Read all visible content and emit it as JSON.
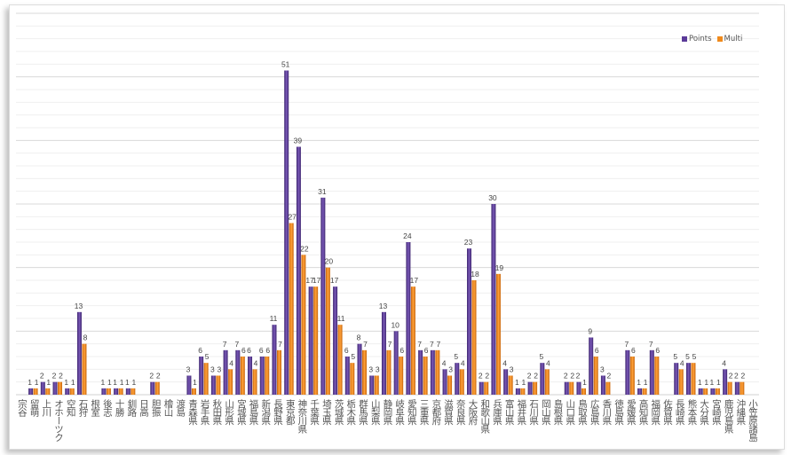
{
  "chart_data": {
    "type": "bar",
    "title": "",
    "xlabel": "",
    "ylabel": "",
    "ylim": [
      0,
      60
    ],
    "grid": true,
    "legend_position": "top-right",
    "categories": [
      "宗谷",
      "留萌",
      "上川",
      "オホーツク",
      "空知",
      "石狩",
      "根室",
      "後志",
      "十勝",
      "釧路",
      "日高",
      "胆振",
      "檜山",
      "渡島",
      "青森県",
      "岩手県",
      "秋田県",
      "山形県",
      "宮城県",
      "福島県",
      "新潟県",
      "長野県",
      "東京都",
      "神奈川県",
      "千葉県",
      "埼玉県",
      "茨城県",
      "栃木県",
      "群馬県",
      "山梨県",
      "静岡県",
      "岐阜県",
      "愛知県",
      "三重県",
      "京都府",
      "滋賀県",
      "奈良県",
      "大阪府",
      "和歌山県",
      "兵庫県",
      "富山県",
      "福井県",
      "石川県",
      "岡山県",
      "島根県",
      "山口県",
      "鳥取県",
      "広島県",
      "香川県",
      "徳島県",
      "愛媛県",
      "高知県",
      "福岡県",
      "佐賀県",
      "長崎県",
      "熊本県",
      "大分県",
      "宮崎県",
      "鹿児島県",
      "沖縄県",
      "小笠原諸島"
    ],
    "series": [
      {
        "name": "Points",
        "color": "#5b3b99",
        "values": [
          0,
          1,
          2,
          2,
          1,
          13,
          0,
          1,
          1,
          1,
          0,
          2,
          0,
          0,
          3,
          6,
          3,
          7,
          7,
          6,
          6,
          11,
          51,
          39,
          17,
          31,
          17,
          6,
          8,
          3,
          13,
          10,
          24,
          7,
          7,
          4,
          5,
          23,
          2,
          30,
          4,
          1,
          2,
          5,
          0,
          2,
          2,
          9,
          3,
          0,
          7,
          1,
          7,
          0,
          5,
          5,
          1,
          1,
          4,
          2,
          0
        ]
      },
      {
        "name": "Multi",
        "color": "#f08a1c",
        "values": [
          0,
          1,
          1,
          2,
          1,
          8,
          0,
          1,
          1,
          1,
          0,
          2,
          0,
          0,
          1,
          5,
          3,
          4,
          6,
          4,
          6,
          7,
          27,
          22,
          17,
          20,
          11,
          5,
          7,
          3,
          7,
          6,
          17,
          6,
          7,
          3,
          4,
          18,
          2,
          19,
          3,
          1,
          2,
          4,
          0,
          2,
          1,
          6,
          2,
          0,
          6,
          1,
          6,
          0,
          4,
          5,
          1,
          1,
          2,
          2,
          0
        ]
      }
    ]
  }
}
